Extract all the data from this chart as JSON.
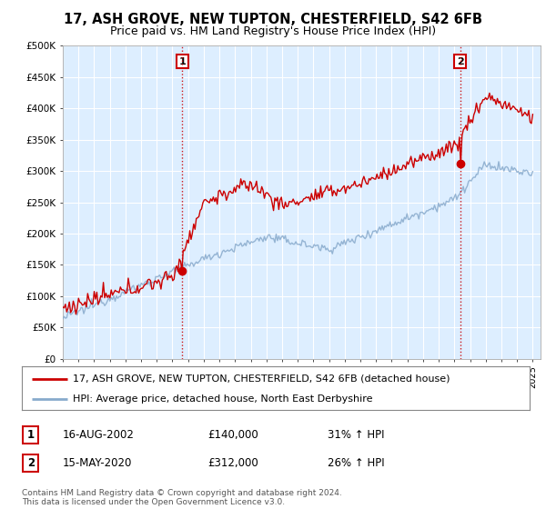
{
  "title": "17, ASH GROVE, NEW TUPTON, CHESTERFIELD, S42 6FB",
  "subtitle": "Price paid vs. HM Land Registry's House Price Index (HPI)",
  "ylim": [
    0,
    500000
  ],
  "yticks": [
    0,
    50000,
    100000,
    150000,
    200000,
    250000,
    300000,
    350000,
    400000,
    450000,
    500000
  ],
  "ytick_labels": [
    "£0",
    "£50K",
    "£100K",
    "£150K",
    "£200K",
    "£250K",
    "£300K",
    "£350K",
    "£400K",
    "£450K",
    "£500K"
  ],
  "background_color": "#ffffff",
  "plot_bg_color": "#ddeeff",
  "grid_color": "#ffffff",
  "red_line_color": "#cc0000",
  "blue_line_color": "#88aacc",
  "t1_year": 2002.625,
  "t1_value": 140000,
  "t2_year": 2020.375,
  "t2_value": 312000,
  "marker1_label": "1",
  "marker2_label": "2",
  "legend_line1": "17, ASH GROVE, NEW TUPTON, CHESTERFIELD, S42 6FB (detached house)",
  "legend_line2": "HPI: Average price, detached house, North East Derbyshire",
  "table_row1": [
    "1",
    "16-AUG-2002",
    "£140,000",
    "31% ↑ HPI"
  ],
  "table_row2": [
    "2",
    "15-MAY-2020",
    "£312,000",
    "26% ↑ HPI"
  ],
  "footer": "Contains HM Land Registry data © Crown copyright and database right 2024.\nThis data is licensed under the Open Government Licence v3.0.",
  "title_fontsize": 10.5,
  "subtitle_fontsize": 9,
  "axis_fontsize": 7.5,
  "legend_fontsize": 8,
  "table_fontsize": 8.5,
  "footer_fontsize": 6.5
}
